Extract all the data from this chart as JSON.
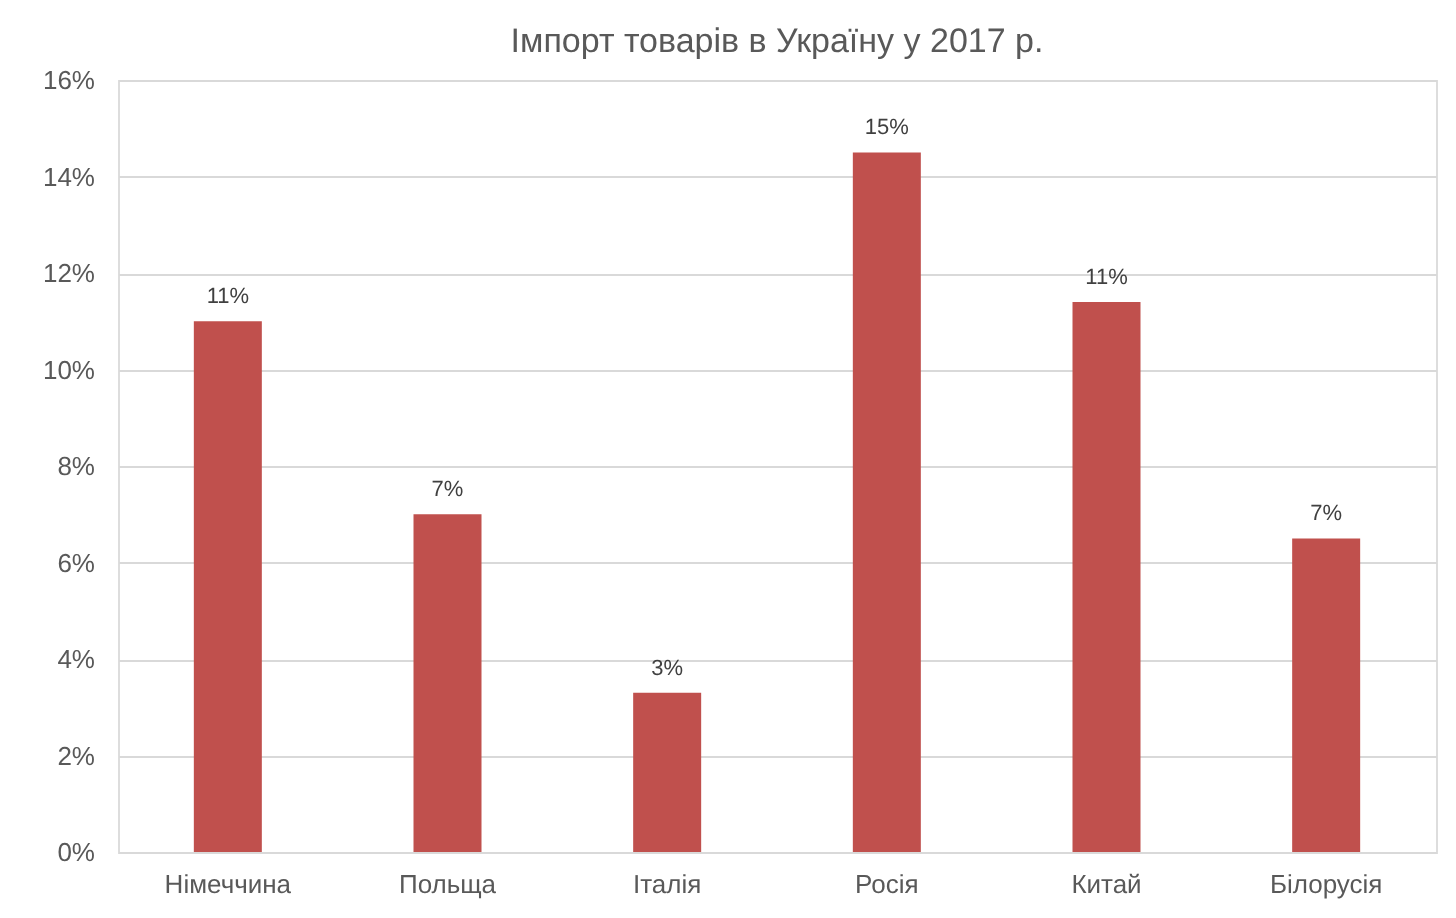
{
  "chart_data": {
    "type": "bar",
    "title": "Імпорт товарів в Україну у 2017 р.",
    "categories": [
      "Німеччина",
      "Польща",
      "Італія",
      "Росія",
      "Китай",
      "Білорусія"
    ],
    "values": [
      11.0,
      7.0,
      3.3,
      14.5,
      11.4,
      6.5
    ],
    "value_labels": [
      "11%",
      "7%",
      "3%",
      "15%",
      "11%",
      "7%"
    ],
    "color": "#c0504d",
    "ylim": [
      0,
      16
    ],
    "yticks": [
      {
        "value": 0,
        "label": "0%"
      },
      {
        "value": 2,
        "label": "2%"
      },
      {
        "value": 4,
        "label": "4%"
      },
      {
        "value": 6,
        "label": "6%"
      },
      {
        "value": 8,
        "label": "8%"
      },
      {
        "value": 10,
        "label": "10%"
      },
      {
        "value": 12,
        "label": "12%"
      },
      {
        "value": 14,
        "label": "14%"
      },
      {
        "value": 16,
        "label": "16%"
      }
    ],
    "grid": "y"
  }
}
